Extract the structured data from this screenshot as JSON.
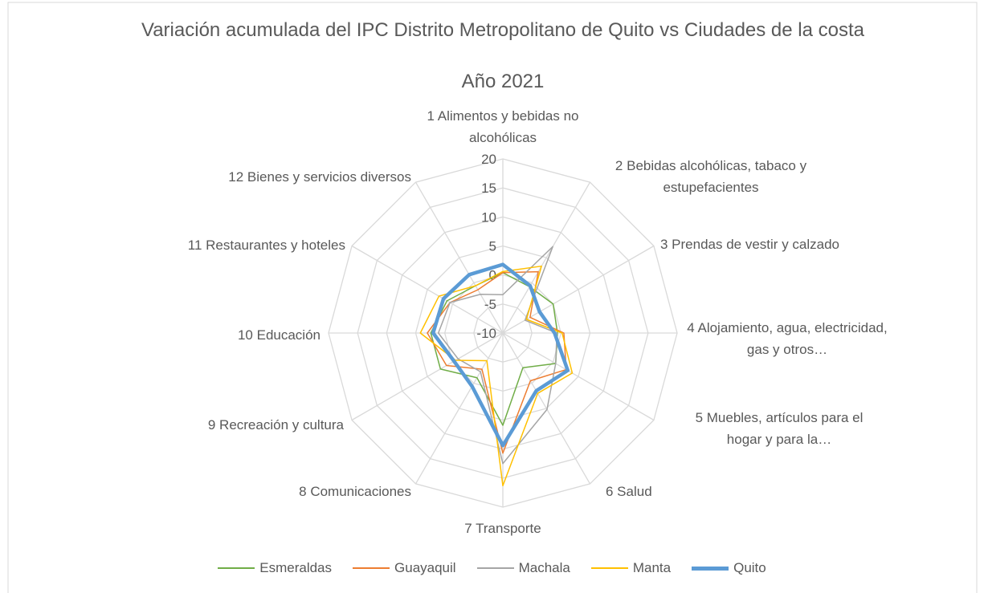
{
  "chart_data": {
    "type": "radar",
    "title": "Variación acumulada del IPC Distrito Metropolitano de Quito vs Ciudades de la costa",
    "subtitle": "Año 2021",
    "categories": [
      "1 Alimentos y bebidas no alcohólicas",
      "2 Bebidas alcohólicas, tabaco y estupefacientes",
      "3 Prendas de vestir y calzado",
      "4 Alojamiento, agua, electricidad, gas y otros…",
      "5 Muebles, artículos para el hogar y para la…",
      "6 Salud",
      "7 Transporte",
      "8 Comunicaciones",
      "9 Recreación y cultura",
      "10 Educación",
      "11 Restaurantes y hoteles",
      "12 Bienes y servicios diversos"
    ],
    "series": [
      {
        "name": "Esmeraldas",
        "color": "#70ad47",
        "values": [
          0.4,
          -0.8,
          0.0,
          -0.6,
          0.5,
          -3.1,
          5.9,
          -1.1,
          2.4,
          2.4,
          1.1,
          -0.6
        ]
      },
      {
        "name": "Guayaquil",
        "color": "#ed7d31",
        "values": [
          0.4,
          2.2,
          -4.6,
          0.5,
          2.6,
          -0.5,
          10.7,
          -2.8,
          1.2,
          3.0,
          0.5,
          -1.4
        ]
      },
      {
        "name": "Machala",
        "color": "#a5a5a5",
        "values": [
          -3.4,
          7.2,
          -5.6,
          -0.7,
          0.5,
          5.2,
          12.5,
          -2.3,
          -1.1,
          1.1,
          0.5,
          -2.3
        ]
      },
      {
        "name": "Manta",
        "color": "#ffc000",
        "values": [
          0.6,
          3.3,
          -5.3,
          0.2,
          3.8,
          2.0,
          16.3,
          -4.5,
          -0.6,
          4.2,
          2.7,
          -0.6
        ]
      },
      {
        "name": "Quito",
        "color": "#5b9bd5",
        "values": [
          1.8,
          -0.6,
          -2.7,
          -1.1,
          2.9,
          1.5,
          9.4,
          0.6,
          -0.3,
          2.0,
          1.8,
          1.6
        ]
      }
    ],
    "ylim": [
      -10,
      20
    ],
    "yticks": [
      -10,
      -5,
      0,
      5,
      10,
      15,
      20
    ],
    "grid": true
  }
}
